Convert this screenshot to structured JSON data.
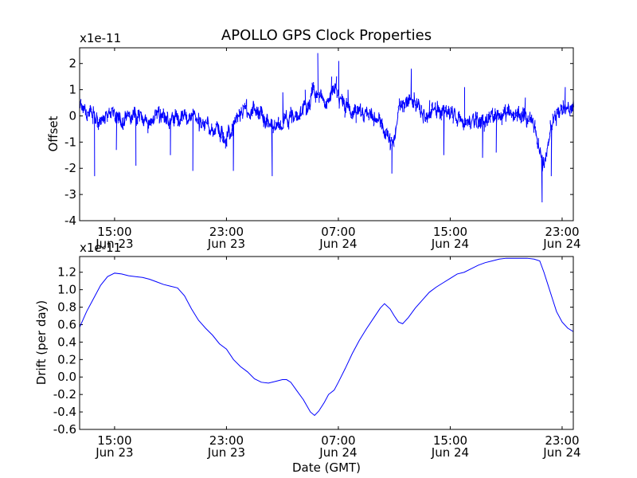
{
  "chart_data": {
    "type": "line",
    "title": "APOLLO GPS Clock Properties",
    "xlabel": "Date (GMT)",
    "x_ticks": [
      {
        "time": "15:00",
        "date": "Jun 23",
        "hours": 15
      },
      {
        "time": "23:00",
        "date": "Jun 23",
        "hours": 23
      },
      {
        "time": "07:00",
        "date": "Jun 24",
        "hours": 31
      },
      {
        "time": "15:00",
        "date": "Jun 24",
        "hours": 39
      },
      {
        "time": "23:00",
        "date": "Jun 24",
        "hours": 47
      }
    ],
    "xlim_hours": [
      12.5,
      47.8
    ],
    "color": "#0000ff",
    "panels": [
      {
        "id": "offset",
        "ylabel": "Offset",
        "multiplier": "x1e-11",
        "ylim": [
          -4,
          2.6
        ],
        "y_ticks": [
          {
            "value": 2,
            "label": "2"
          },
          {
            "value": 1,
            "label": "1"
          },
          {
            "value": 0,
            "label": "0"
          },
          {
            "value": -1,
            "label": "-1"
          },
          {
            "value": -2,
            "label": "-2"
          },
          {
            "value": -3,
            "label": "-3"
          },
          {
            "value": -4,
            "label": "-4"
          }
        ],
        "anchors": [
          [
            12.5,
            0.3
          ],
          [
            13.2,
            0.1
          ],
          [
            14.0,
            -0.2
          ],
          [
            14.8,
            0.2
          ],
          [
            15.5,
            -0.1
          ],
          [
            16.5,
            0.1
          ],
          [
            17.5,
            -0.3
          ],
          [
            18.5,
            0.1
          ],
          [
            19.5,
            -0.2
          ],
          [
            20.5,
            0.0
          ],
          [
            21.5,
            -0.4
          ],
          [
            22.5,
            -0.6
          ],
          [
            23.0,
            -0.8
          ],
          [
            23.6,
            -0.3
          ],
          [
            24.2,
            0.2
          ],
          [
            25.0,
            0.3
          ],
          [
            25.8,
            -0.2
          ],
          [
            26.4,
            -0.4
          ],
          [
            27.0,
            -0.2
          ],
          [
            28.0,
            0.0
          ],
          [
            28.8,
            0.4
          ],
          [
            29.2,
            0.9
          ],
          [
            29.8,
            0.6
          ],
          [
            30.4,
            0.5
          ],
          [
            30.8,
            1.2
          ],
          [
            31.2,
            0.4
          ],
          [
            32.0,
            0.1
          ],
          [
            33.0,
            0.0
          ],
          [
            33.8,
            -0.1
          ],
          [
            34.4,
            -0.8
          ],
          [
            34.9,
            -1.3
          ],
          [
            35.3,
            0.3
          ],
          [
            35.8,
            0.6
          ],
          [
            36.5,
            0.4
          ],
          [
            37.2,
            0.0
          ],
          [
            38.0,
            0.3
          ],
          [
            39.0,
            0.1
          ],
          [
            40.0,
            -0.3
          ],
          [
            40.8,
            -0.2
          ],
          [
            41.5,
            -0.2
          ],
          [
            42.3,
            0.0
          ],
          [
            43.0,
            0.1
          ],
          [
            43.8,
            0.2
          ],
          [
            44.5,
            -0.1
          ],
          [
            45.0,
            -0.4
          ],
          [
            45.6,
            -2.0
          ],
          [
            46.0,
            -1.0
          ],
          [
            46.5,
            0.0
          ],
          [
            47.0,
            0.3
          ],
          [
            47.8,
            0.4
          ]
        ],
        "noise_amplitude": 0.35,
        "spikes": [
          [
            13.5,
            -2.3
          ],
          [
            15.1,
            -1.3
          ],
          [
            16.5,
            -1.9
          ],
          [
            19.0,
            -1.5
          ],
          [
            20.6,
            -2.1
          ],
          [
            22.5,
            -1.0
          ],
          [
            23.5,
            -2.1
          ],
          [
            26.2,
            -2.3
          ],
          [
            27.0,
            0.9
          ],
          [
            28.6,
            1.0
          ],
          [
            29.5,
            2.4
          ],
          [
            30.5,
            1.5
          ],
          [
            31.0,
            2.1
          ],
          [
            31.7,
            1.0
          ],
          [
            34.8,
            -2.2
          ],
          [
            36.2,
            1.8
          ],
          [
            37.5,
            0.6
          ],
          [
            38.5,
            -1.5
          ],
          [
            40.0,
            1.1
          ],
          [
            41.3,
            -1.6
          ],
          [
            42.3,
            -1.4
          ],
          [
            44.3,
            0.7
          ],
          [
            45.5,
            -3.3
          ],
          [
            46.2,
            -2.3
          ],
          [
            47.2,
            1.1
          ]
        ]
      },
      {
        "id": "drift",
        "ylabel": "Drift (per day)",
        "multiplier": "x1e-11",
        "ylim": [
          -0.6,
          1.38
        ],
        "y_ticks": [
          {
            "value": 1.2,
            "label": "1.2"
          },
          {
            "value": 1.0,
            "label": "1.0"
          },
          {
            "value": 0.8,
            "label": "0.8"
          },
          {
            "value": 0.6,
            "label": "0.6"
          },
          {
            "value": 0.4,
            "label": "0.4"
          },
          {
            "value": 0.2,
            "label": "0.2"
          },
          {
            "value": 0.0,
            "label": "0.0"
          },
          {
            "value": -0.2,
            "label": "-0.2"
          },
          {
            "value": -0.4,
            "label": "-0.4"
          },
          {
            "value": -0.6,
            "label": "-0.6"
          }
        ],
        "values": [
          [
            12.5,
            0.57
          ],
          [
            13.0,
            0.75
          ],
          [
            13.5,
            0.9
          ],
          [
            14.0,
            1.05
          ],
          [
            14.5,
            1.15
          ],
          [
            15.0,
            1.19
          ],
          [
            15.5,
            1.18
          ],
          [
            16.0,
            1.16
          ],
          [
            16.5,
            1.15
          ],
          [
            17.0,
            1.14
          ],
          [
            17.5,
            1.12
          ],
          [
            18.0,
            1.09
          ],
          [
            18.5,
            1.06
          ],
          [
            19.0,
            1.04
          ],
          [
            19.5,
            1.02
          ],
          [
            20.0,
            0.93
          ],
          [
            20.5,
            0.78
          ],
          [
            21.0,
            0.65
          ],
          [
            21.5,
            0.56
          ],
          [
            22.0,
            0.48
          ],
          [
            22.5,
            0.38
          ],
          [
            23.0,
            0.32
          ],
          [
            23.5,
            0.2
          ],
          [
            24.0,
            0.12
          ],
          [
            24.5,
            0.06
          ],
          [
            25.0,
            -0.02
          ],
          [
            25.5,
            -0.06
          ],
          [
            26.0,
            -0.07
          ],
          [
            26.5,
            -0.05
          ],
          [
            27.0,
            -0.03
          ],
          [
            27.3,
            -0.03
          ],
          [
            27.6,
            -0.06
          ],
          [
            28.0,
            -0.15
          ],
          [
            28.5,
            -0.26
          ],
          [
            29.0,
            -0.4
          ],
          [
            29.3,
            -0.44
          ],
          [
            29.6,
            -0.39
          ],
          [
            30.0,
            -0.29
          ],
          [
            30.3,
            -0.2
          ],
          [
            30.7,
            -0.15
          ],
          [
            31.0,
            -0.06
          ],
          [
            31.5,
            0.1
          ],
          [
            32.0,
            0.27
          ],
          [
            32.5,
            0.42
          ],
          [
            33.0,
            0.55
          ],
          [
            33.5,
            0.67
          ],
          [
            34.0,
            0.79
          ],
          [
            34.3,
            0.84
          ],
          [
            34.7,
            0.78
          ],
          [
            35.0,
            0.7
          ],
          [
            35.3,
            0.63
          ],
          [
            35.6,
            0.61
          ],
          [
            36.0,
            0.68
          ],
          [
            36.5,
            0.79
          ],
          [
            37.0,
            0.88
          ],
          [
            37.5,
            0.97
          ],
          [
            38.0,
            1.03
          ],
          [
            38.5,
            1.08
          ],
          [
            39.0,
            1.13
          ],
          [
            39.5,
            1.18
          ],
          [
            40.0,
            1.2
          ],
          [
            40.5,
            1.24
          ],
          [
            41.0,
            1.28
          ],
          [
            41.5,
            1.31
          ],
          [
            42.0,
            1.33
          ],
          [
            42.5,
            1.35
          ],
          [
            43.0,
            1.36
          ],
          [
            43.5,
            1.36
          ],
          [
            44.0,
            1.36
          ],
          [
            44.5,
            1.36
          ],
          [
            45.0,
            1.35
          ],
          [
            45.4,
            1.33
          ],
          [
            45.7,
            1.2
          ],
          [
            46.0,
            1.05
          ],
          [
            46.3,
            0.9
          ],
          [
            46.6,
            0.75
          ],
          [
            47.0,
            0.63
          ],
          [
            47.4,
            0.56
          ],
          [
            47.8,
            0.52
          ]
        ]
      }
    ]
  }
}
